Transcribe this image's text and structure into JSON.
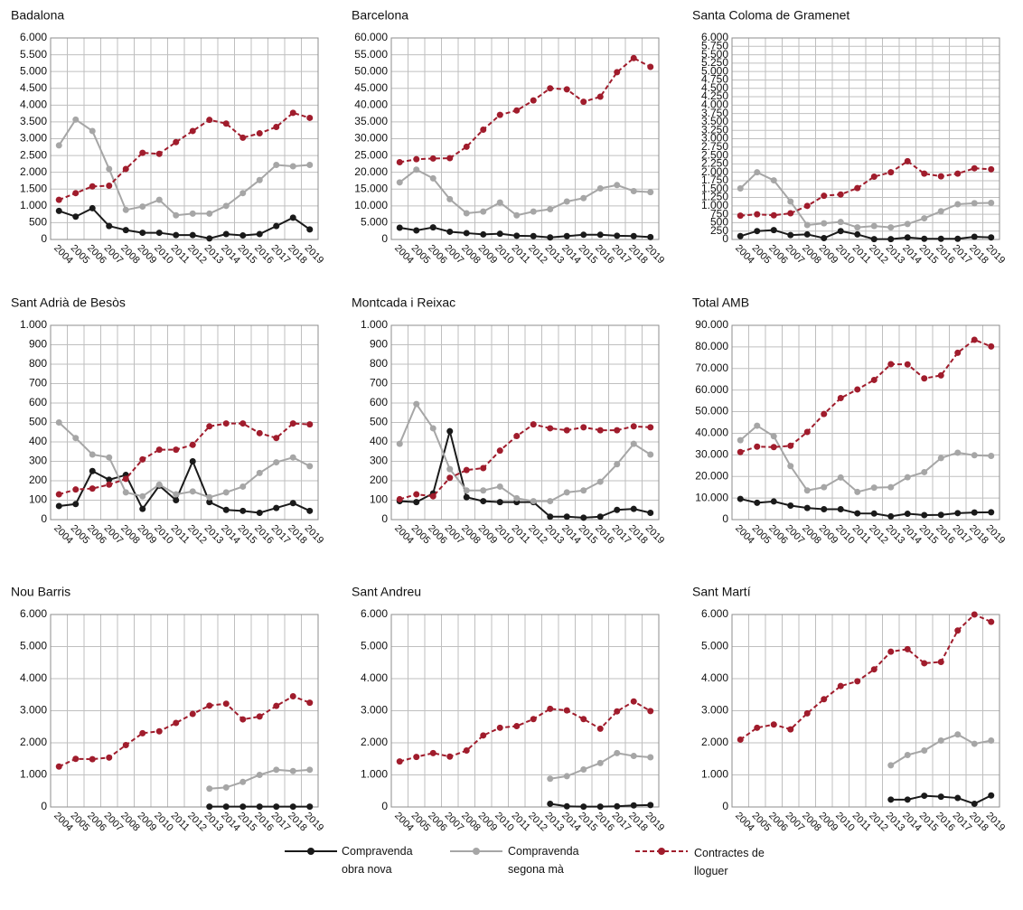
{
  "chart_data": [
    {
      "type": "line",
      "title": "Badalona",
      "grid": true,
      "categories": [
        "2004",
        "2005",
        "2006",
        "2007",
        "2008",
        "2009",
        "2010",
        "2011",
        "2012",
        "2013",
        "2014",
        "2015",
        "2016",
        "2017",
        "2018",
        "2019"
      ],
      "series": [
        {
          "values": [
            850,
            680,
            930,
            400,
            280,
            200,
            200,
            130,
            130,
            30,
            160,
            120,
            160,
            400,
            650,
            300
          ]
        },
        {
          "values": [
            2800,
            3570,
            3230,
            2100,
            880,
            980,
            1180,
            720,
            770,
            770,
            1000,
            1380,
            1770,
            2220,
            2180,
            2220
          ]
        },
        {
          "values": [
            1180,
            1380,
            1580,
            1600,
            2100,
            2580,
            2550,
            2900,
            3230,
            3560,
            3450,
            3030,
            3160,
            3350,
            3770,
            3620
          ]
        }
      ],
      "ylim": [
        0,
        6000
      ],
      "yticks": [
        0,
        500,
        {
          "value": 1000,
          "label": "1.000"
        },
        {
          "value": 1500,
          "label": "1.500"
        },
        {
          "value": 2000,
          "label": "2.000"
        },
        {
          "value": 2500,
          "label": "2.500"
        },
        {
          "value": 3000,
          "label": "3.000"
        },
        {
          "value": 3500,
          "label": "3.500"
        },
        {
          "value": 4000,
          "label": "4.000"
        },
        {
          "value": 4500,
          "label": "4.500"
        },
        {
          "value": 5000,
          "label": "5.000"
        },
        {
          "value": 5500,
          "label": "5.500"
        },
        {
          "value": 6000,
          "label": "6.000"
        }
      ]
    },
    {
      "type": "line",
      "title": "Barcelona",
      "grid": true,
      "categories": [
        "2004",
        "2005",
        "2006",
        "2007",
        "2008",
        "2009",
        "2010",
        "2011",
        "2012",
        "2013",
        "2014",
        "2015",
        "2016",
        "2017",
        "2018",
        "2019"
      ],
      "series": [
        {
          "values": [
            3500,
            2700,
            3600,
            2300,
            1900,
            1500,
            1700,
            1100,
            1000,
            600,
            1000,
            1400,
            1400,
            1100,
            1000,
            700
          ]
        },
        {
          "values": [
            17000,
            20800,
            18200,
            12000,
            7800,
            8300,
            11000,
            7200,
            8300,
            9000,
            11300,
            12300,
            15200,
            16200,
            14400,
            14100
          ]
        },
        {
          "values": [
            23000,
            23900,
            24100,
            24200,
            27600,
            32700,
            37100,
            38400,
            41400,
            45000,
            44700,
            41000,
            42500,
            49800,
            54000,
            51400
          ]
        }
      ],
      "ylim": [
        0,
        60000
      ],
      "yticks": [
        0,
        {
          "value": 5000,
          "label": "5.000"
        },
        {
          "value": 10000,
          "label": "10.000"
        },
        {
          "value": 15000,
          "label": "15.000"
        },
        {
          "value": 20000,
          "label": "20.000"
        },
        {
          "value": 25000,
          "label": "25.000"
        },
        {
          "value": 30000,
          "label": "30.000"
        },
        {
          "value": 35000,
          "label": "35.000"
        },
        {
          "value": 40000,
          "label": "40.000"
        },
        {
          "value": 45000,
          "label": "45.000"
        },
        {
          "value": 50000,
          "label": "50.000"
        },
        {
          "value": 55000,
          "label": "55.000"
        },
        {
          "value": 60000,
          "label": "60.000"
        }
      ]
    },
    {
      "type": "line",
      "title": "Santa Coloma de Gramenet",
      "grid": true,
      "categories": [
        "2004",
        "2005",
        "2006",
        "2007",
        "2008",
        "2009",
        "2010",
        "2011",
        "2012",
        "2013",
        "2014",
        "2015",
        "2016",
        "2017",
        "2018",
        "2019"
      ],
      "series": [
        {
          "values": [
            100,
            250,
            280,
            130,
            150,
            40,
            250,
            150,
            10,
            10,
            60,
            20,
            20,
            20,
            80,
            60
          ]
        },
        {
          "values": [
            1520,
            2000,
            1760,
            1130,
            430,
            480,
            520,
            360,
            400,
            360,
            460,
            630,
            840,
            1050,
            1080,
            1090
          ]
        },
        {
          "values": [
            710,
            750,
            720,
            780,
            1000,
            1300,
            1340,
            1530,
            1870,
            2000,
            2330,
            1960,
            1880,
            1960,
            2120,
            2090
          ]
        }
      ],
      "ylim": [
        0,
        6000
      ],
      "yticks": [
        0,
        250,
        500,
        750,
        {
          "value": 1000,
          "label": "1.000"
        },
        {
          "value": 1250,
          "label": "1.250"
        },
        {
          "value": 1500,
          "label": "1.500"
        },
        {
          "value": 1750,
          "label": "1.750"
        },
        {
          "value": 2000,
          "label": "2.000"
        },
        {
          "value": 2250,
          "label": "2.250"
        },
        {
          "value": 2500,
          "label": "2.500"
        },
        {
          "value": 2750,
          "label": "2.750"
        },
        {
          "value": 3000,
          "label": "3.000"
        },
        {
          "value": 3250,
          "label": "3.250"
        },
        {
          "value": 3500,
          "label": "3.500"
        },
        {
          "value": 3750,
          "label": "3.750"
        },
        {
          "value": 4000,
          "label": "4.000"
        },
        {
          "value": 4250,
          "label": "4.250"
        },
        {
          "value": 4500,
          "label": "4.500"
        },
        {
          "value": 4750,
          "label": "4.750"
        },
        {
          "value": 5000,
          "label": "5.000"
        },
        {
          "value": 5250,
          "label": "5.250"
        },
        {
          "value": 5500,
          "label": "5.500"
        },
        {
          "value": 5750,
          "label": "5.750"
        },
        {
          "value": 6000,
          "label": "6.000"
        }
      ]
    },
    {
      "type": "line",
      "title": "Sant Adrià de Besòs",
      "grid": true,
      "categories": [
        "2004",
        "2005",
        "2006",
        "2007",
        "2008",
        "2009",
        "2010",
        "2011",
        "2012",
        "2013",
        "2014",
        "2015",
        "2016",
        "2017",
        "2018",
        "2019"
      ],
      "series": [
        {
          "values": [
            70,
            80,
            250,
            205,
            230,
            55,
            175,
            100,
            300,
            90,
            50,
            45,
            35,
            60,
            85,
            45
          ]
        },
        {
          "values": [
            500,
            420,
            335,
            320,
            140,
            120,
            180,
            130,
            145,
            115,
            140,
            170,
            240,
            295,
            320,
            275
          ]
        },
        {
          "values": [
            130,
            155,
            160,
            180,
            210,
            310,
            360,
            360,
            385,
            480,
            495,
            495,
            445,
            420,
            495,
            490
          ]
        }
      ],
      "ylim": [
        0,
        1000
      ],
      "yticks": [
        0,
        100,
        200,
        300,
        400,
        500,
        600,
        700,
        800,
        900,
        {
          "value": 1000,
          "label": "1.000"
        }
      ]
    },
    {
      "type": "line",
      "title": "Montcada i Reixac",
      "grid": true,
      "categories": [
        "2004",
        "2005",
        "2006",
        "2007",
        "2008",
        "2009",
        "2010",
        "2011",
        "2012",
        "2013",
        "2014",
        "2015",
        "2016",
        "2017",
        "2018",
        "2019"
      ],
      "series": [
        {
          "values": [
            95,
            90,
            135,
            455,
            115,
            95,
            90,
            90,
            90,
            15,
            15,
            10,
            15,
            50,
            55,
            35
          ]
        },
        {
          "values": [
            390,
            595,
            470,
            260,
            150,
            150,
            170,
            110,
            95,
            95,
            140,
            150,
            195,
            285,
            390,
            335
          ]
        },
        {
          "values": [
            105,
            130,
            120,
            215,
            255,
            265,
            355,
            430,
            490,
            470,
            460,
            475,
            460,
            460,
            480,
            475
          ]
        }
      ],
      "ylim": [
        0,
        1000
      ],
      "yticks": [
        0,
        100,
        200,
        300,
        400,
        500,
        600,
        700,
        800,
        900,
        {
          "value": 1000,
          "label": "1.000"
        }
      ]
    },
    {
      "type": "line",
      "title": "Total AMB",
      "grid": true,
      "categories": [
        "2004",
        "2005",
        "2006",
        "2007",
        "2008",
        "2009",
        "2010",
        "2011",
        "2012",
        "2013",
        "2014",
        "2015",
        "2016",
        "2017",
        "2018",
        "2019"
      ],
      "series": [
        {
          "values": [
            9600,
            7800,
            8400,
            6500,
            5400,
            4800,
            4800,
            2900,
            2800,
            1500,
            2700,
            2100,
            2200,
            3000,
            3300,
            3400
          ]
        },
        {
          "values": [
            36800,
            43500,
            38600,
            24800,
            13500,
            15000,
            19500,
            12800,
            14800,
            15000,
            19600,
            22000,
            28500,
            31000,
            29800,
            29500
          ]
        },
        {
          "values": [
            31300,
            33800,
            33600,
            34200,
            40600,
            48900,
            56300,
            60300,
            64700,
            72000,
            71900,
            65400,
            66800,
            77300,
            83300,
            80200
          ]
        }
      ],
      "ylim": [
        0,
        90000
      ],
      "yticks": [
        0,
        {
          "value": 10000,
          "label": "10.000"
        },
        {
          "value": 20000,
          "label": "20.000"
        },
        {
          "value": 30000,
          "label": "30.000"
        },
        {
          "value": 40000,
          "label": "40.000"
        },
        {
          "value": 50000,
          "label": "50.000"
        },
        {
          "value": 60000,
          "label": "60.000"
        },
        {
          "value": 70000,
          "label": "70.000"
        },
        {
          "value": 80000,
          "label": "80.000"
        },
        {
          "value": 90000,
          "label": "90.000"
        }
      ]
    },
    {
      "type": "line",
      "title": "Nou Barris",
      "grid": true,
      "categories": [
        "2004",
        "2005",
        "2006",
        "2007",
        "2008",
        "2009",
        "2010",
        "2011",
        "2012",
        "2013",
        "2014",
        "2015",
        "2016",
        "2017",
        "2018",
        "2019"
      ],
      "series": [
        {
          "values": [
            null,
            null,
            null,
            null,
            null,
            null,
            null,
            null,
            null,
            10,
            10,
            10,
            10,
            10,
            10,
            10
          ]
        },
        {
          "values": [
            null,
            null,
            null,
            null,
            null,
            null,
            null,
            null,
            null,
            570,
            610,
            780,
            1000,
            1160,
            1120,
            1160
          ]
        },
        {
          "values": [
            1260,
            1500,
            1490,
            1540,
            1930,
            2300,
            2360,
            2620,
            2900,
            3160,
            3220,
            2730,
            2820,
            3150,
            3450,
            3250
          ]
        }
      ],
      "ylim": [
        0,
        6000
      ],
      "yticks": [
        0,
        {
          "value": 1000,
          "label": "1.000"
        },
        {
          "value": 2000,
          "label": "2.000"
        },
        {
          "value": 3000,
          "label": "3.000"
        },
        {
          "value": 4000,
          "label": "4.000"
        },
        {
          "value": 5000,
          "label": "5.000"
        },
        {
          "value": 6000,
          "label": "6.000"
        }
      ]
    },
    {
      "type": "line",
      "title": "Sant Andreu",
      "grid": true,
      "categories": [
        "2004",
        "2005",
        "2006",
        "2007",
        "2008",
        "2009",
        "2010",
        "2011",
        "2012",
        "2013",
        "2014",
        "2015",
        "2016",
        "2017",
        "2018",
        "2019"
      ],
      "series": [
        {
          "values": [
            null,
            null,
            null,
            null,
            null,
            null,
            null,
            null,
            null,
            100,
            20,
            10,
            10,
            20,
            50,
            60
          ]
        },
        {
          "values": [
            null,
            null,
            null,
            null,
            null,
            null,
            null,
            null,
            null,
            880,
            960,
            1170,
            1370,
            1680,
            1590,
            1550
          ]
        },
        {
          "values": [
            1420,
            1560,
            1680,
            1570,
            1760,
            2230,
            2470,
            2520,
            2740,
            3060,
            3010,
            2740,
            2440,
            2980,
            3290,
            2990
          ]
        }
      ],
      "ylim": [
        0,
        6000
      ],
      "yticks": [
        0,
        {
          "value": 1000,
          "label": "1.000"
        },
        {
          "value": 2000,
          "label": "2.000"
        },
        {
          "value": 3000,
          "label": "3.000"
        },
        {
          "value": 4000,
          "label": "4.000"
        },
        {
          "value": 5000,
          "label": "5.000"
        },
        {
          "value": 6000,
          "label": "6.000"
        }
      ]
    },
    {
      "type": "line",
      "title": "Sant Martí",
      "grid": true,
      "categories": [
        "2004",
        "2005",
        "2006",
        "2007",
        "2008",
        "2009",
        "2010",
        "2011",
        "2012",
        "2013",
        "2014",
        "2015",
        "2016",
        "2017",
        "2018",
        "2019"
      ],
      "series": [
        {
          "values": [
            null,
            null,
            null,
            null,
            null,
            null,
            null,
            null,
            null,
            230,
            230,
            350,
            320,
            280,
            100,
            360
          ]
        },
        {
          "values": [
            null,
            null,
            null,
            null,
            null,
            null,
            null,
            null,
            null,
            1300,
            1620,
            1760,
            2070,
            2260,
            1970,
            2070
          ]
        },
        {
          "values": [
            2100,
            2470,
            2570,
            2420,
            2920,
            3360,
            3770,
            3920,
            4290,
            4840,
            4920,
            4480,
            4520,
            5500,
            6000,
            5770
          ]
        }
      ],
      "ylim": [
        0,
        6000
      ],
      "yticks": [
        0,
        {
          "value": 1000,
          "label": "1.000"
        },
        {
          "value": 2000,
          "label": "2.000"
        },
        {
          "value": 3000,
          "label": "3.000"
        },
        {
          "value": 4000,
          "label": "4.000"
        },
        {
          "value": 5000,
          "label": "5.000"
        },
        {
          "value": 6000,
          "label": "6.000"
        }
      ]
    }
  ],
  "legend": [
    {
      "name": "Compravenda obra nova",
      "color": "#1a1a1a",
      "line_style": "solid"
    },
    {
      "name": "Compravenda segona mà",
      "color": "#a6a6a6",
      "line_style": "solid"
    },
    {
      "name": "Contractes de lloguer",
      "color": "#a01c2c",
      "line_style": "dashed"
    }
  ]
}
